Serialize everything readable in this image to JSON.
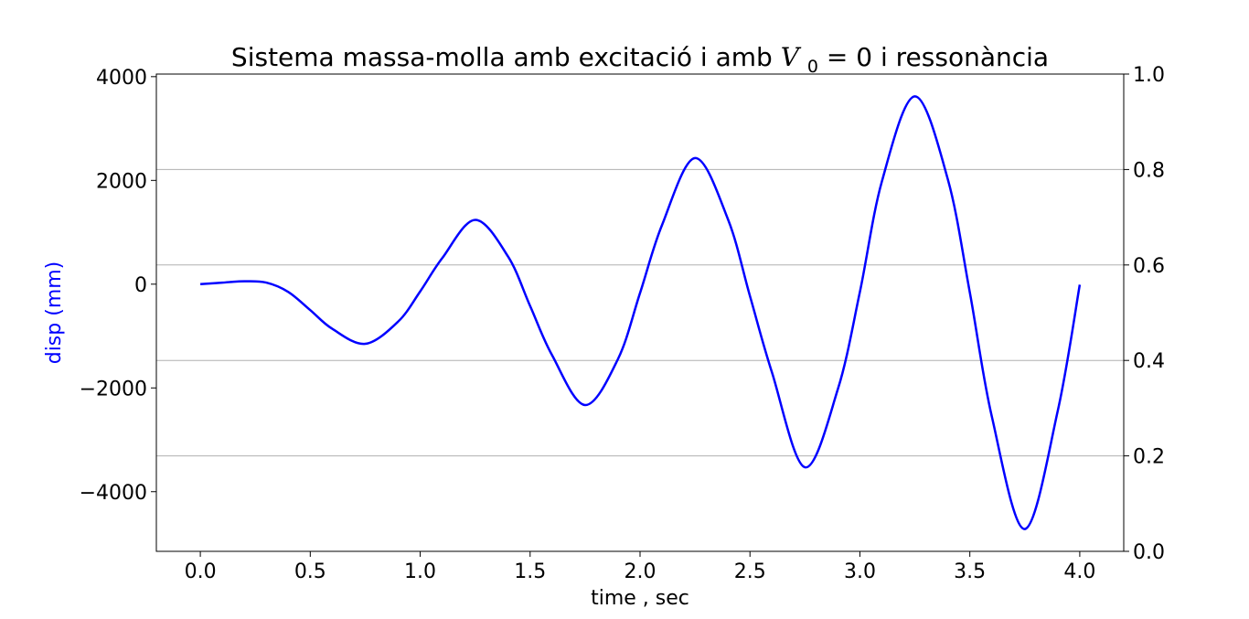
{
  "chart_data": {
    "type": "line",
    "title": "Sistema massa-molla amb excitació i amb",
    "title_math": {
      "var": "V",
      "sub": "0",
      "eq": " = 0",
      "tail": " i ressonància"
    },
    "xlabel": "time , sec",
    "ylabel": "disp (mm)",
    "ylabel_color": "#0000ff",
    "line_color": "#0000ff",
    "xlim": [
      -0.2,
      4.2
    ],
    "ylim": [
      -5150,
      4050
    ],
    "y2lim": [
      0.0,
      1.0
    ],
    "x_ticks": [
      0.0,
      0.5,
      1.0,
      1.5,
      2.0,
      2.5,
      3.0,
      3.5,
      4.0
    ],
    "x_tick_labels": [
      "0.0",
      "0.5",
      "1.0",
      "1.5",
      "2.0",
      "2.5",
      "3.0",
      "3.5",
      "4.0"
    ],
    "y_ticks": [
      4000,
      2000,
      0,
      -2000,
      -4000
    ],
    "y_tick_labels": [
      "4000",
      "2000",
      "0",
      "−2000",
      "−4000"
    ],
    "y2_ticks": [
      1.0,
      0.8,
      0.6,
      0.4,
      0.2,
      0.0
    ],
    "y2_tick_labels": [
      "1.0",
      "0.8",
      "0.6",
      "0.4",
      "0.2",
      "0.0"
    ],
    "grid": "horizontal, right axis",
    "series": [
      {
        "x": [
          0.0,
          0.1,
          0.2,
          0.3,
          0.4,
          0.5,
          0.6,
          0.75,
          0.9,
          1.0,
          1.1,
          1.25,
          1.4,
          1.5,
          1.6,
          1.75,
          1.9,
          2.0,
          2.1,
          2.25,
          2.4,
          2.5,
          2.6,
          2.75,
          2.9,
          3.0,
          3.1,
          3.25,
          3.4,
          3.5,
          3.6,
          3.75,
          3.9,
          4.0
        ],
        "y": [
          0,
          30,
          55,
          30,
          -150,
          -500,
          -860,
          -1150,
          -720,
          -140,
          500,
          1240,
          530,
          -420,
          -1370,
          -2330,
          -1440,
          -170,
          1140,
          2430,
          1250,
          -230,
          -1700,
          -3530,
          -2020,
          -150,
          1980,
          3620,
          2020,
          -160,
          -2550,
          -4720,
          -2440,
          -10
        ]
      }
    ]
  }
}
